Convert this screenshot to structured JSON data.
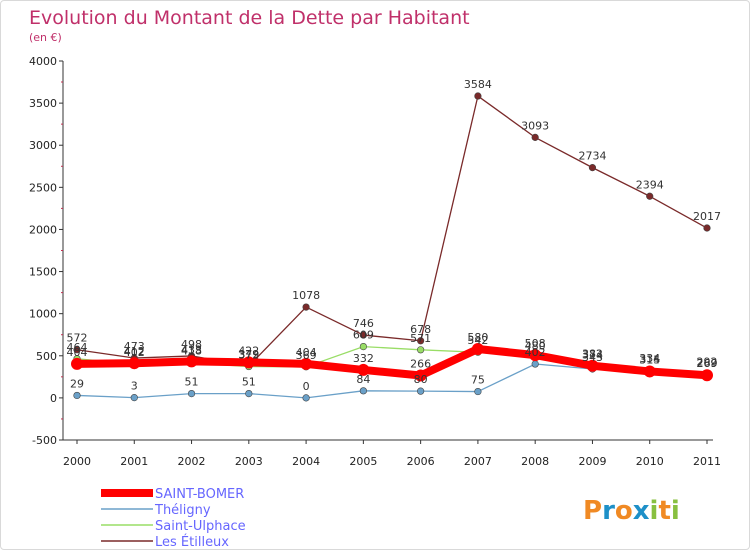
{
  "chart_data": {
    "type": "line",
    "title": "Evolution du Montant de la Dette par Habitant",
    "subtitle": "(en €)",
    "xlabel": "",
    "ylabel": "",
    "ylim": [
      -500,
      4000
    ],
    "yticks": [
      "-500",
      "0",
      "500",
      "1000",
      "1500",
      "2000",
      "2500",
      "3000",
      "3500",
      "4000"
    ],
    "ytick_values": [
      -500,
      0,
      500,
      1000,
      1500,
      2000,
      2500,
      3000,
      3500,
      4000
    ],
    "categories": [
      "2000",
      "2001",
      "2002",
      "2003",
      "2004",
      "2005",
      "2006",
      "2007",
      "2008",
      "2009",
      "2010",
      "2011"
    ],
    "series": [
      {
        "name": "Les Étilleux",
        "color": "#7a2a2a",
        "values": [
          572,
          473,
          498,
          379,
          1078,
          746,
          678,
          3584,
          3093,
          2734,
          2394,
          2017
        ],
        "labels": [
          "572",
          "473",
          "498",
          "379",
          "1078",
          "746",
          "678",
          "3584",
          "3093",
          "2734",
          "2394",
          "2017"
        ]
      },
      {
        "name": "Saint-Ulphace",
        "color": "#99dd66",
        "values": [
          464,
          402,
          418,
          372,
          369,
          609,
          571,
          542,
          480,
          374,
          334,
          292
        ],
        "labels": [
          "464",
          "402",
          "418",
          "372",
          "369",
          "609",
          "571",
          "542",
          "480",
          "374",
          "334",
          "292"
        ]
      },
      {
        "name": "Théligny",
        "color": "#6aa0c8",
        "values": [
          29,
          3,
          51,
          51,
          0,
          84,
          80,
          75,
          402,
          343,
          315,
          269
        ],
        "labels": [
          "29",
          "3",
          "51",
          "51",
          "0",
          "84",
          "80",
          "75",
          "402",
          "343",
          "315",
          "269"
        ]
      },
      {
        "name": "SAINT-BOMER",
        "color": "#ff0000",
        "values": [
          404,
          412,
          433,
          422,
          404,
          332,
          266,
          580,
          508,
          382,
          314,
          269
        ],
        "labels": [
          "404",
          "412",
          "433",
          "422",
          "404",
          "332",
          "266",
          "580",
          "508",
          "382",
          "314",
          "269"
        ]
      }
    ],
    "legend": [
      {
        "name": "SAINT-BOMER",
        "color": "#ff0000",
        "text_color": "#6666ff"
      },
      {
        "name": "Théligny",
        "color": "#6aa0c8",
        "text_color": "#6666ff"
      },
      {
        "name": "Saint-Ulphace",
        "color": "#99dd66",
        "text_color": "#6666ff"
      },
      {
        "name": "Les Étilleux",
        "color": "#7a2a2a",
        "text_color": "#6666ff"
      }
    ],
    "legend_position": "bottom-left",
    "grid": false
  },
  "logo": {
    "text": "Proxiti",
    "letters": [
      "P",
      "r",
      "o",
      "x",
      "i",
      "t",
      "i"
    ],
    "colors": [
      "#f08a24",
      "#1e90c8",
      "#f08a24",
      "#1e90c8",
      "#88c040",
      "#f08a24",
      "#88c040"
    ]
  }
}
